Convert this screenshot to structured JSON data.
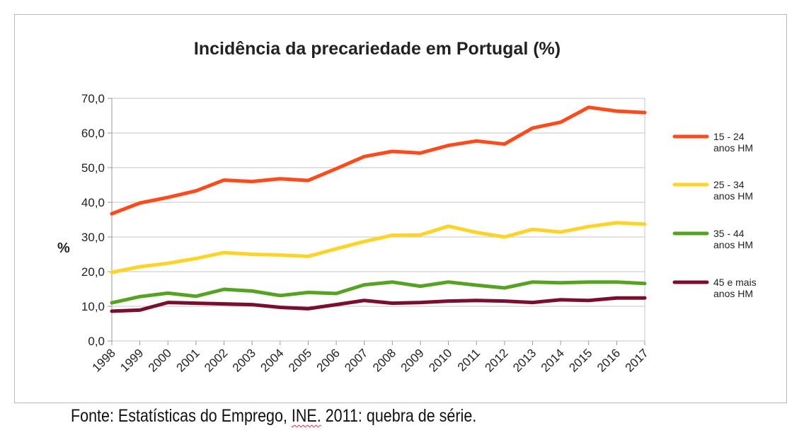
{
  "chart_data": {
    "type": "line",
    "title": "Incidência da precariedade em Portugal (%)",
    "ylabel": "%",
    "xlabel": "",
    "ylim": [
      0,
      70
    ],
    "yticks": [
      "0,0",
      "10,0",
      "20,0",
      "30,0",
      "40,0",
      "50,0",
      "60,0",
      "70,0"
    ],
    "categories": [
      "1998",
      "1999",
      "2000",
      "2001",
      "2002",
      "2003",
      "2004",
      "2005",
      "2006",
      "2007",
      "2008",
      "2009",
      "2010",
      "2011",
      "2012",
      "2013",
      "2014",
      "2015",
      "2016",
      "2017"
    ],
    "series": [
      {
        "name": "15 - 24 anos HM",
        "label_line1": "15 - 24",
        "label_line2": "anos HM",
        "color": "#ff4a1c",
        "values": [
          36.7,
          39.8,
          41.4,
          43.3,
          46.4,
          46.0,
          46.8,
          46.3,
          49.7,
          53.2,
          54.7,
          54.2,
          56.4,
          57.7,
          56.8,
          61.4,
          63.1,
          67.4,
          66.3,
          65.9
        ]
      },
      {
        "name": "25 - 34 anos HM",
        "label_line1": "25 - 34",
        "label_line2": "anos HM",
        "color": "#ffd426",
        "values": [
          19.8,
          21.4,
          22.4,
          23.8,
          25.5,
          25.0,
          24.8,
          24.4,
          26.6,
          28.7,
          30.5,
          30.6,
          33.1,
          31.3,
          30.0,
          32.2,
          31.4,
          33.0,
          34.1,
          33.7
        ]
      },
      {
        "name": "35 - 44 anos HM",
        "label_line1": "35 - 44",
        "label_line2": "anos HM",
        "color": "#56a324",
        "values": [
          11.0,
          12.8,
          13.8,
          12.9,
          14.9,
          14.4,
          13.1,
          14.0,
          13.7,
          16.2,
          17.0,
          15.8,
          17.0,
          16.1,
          15.3,
          17.0,
          16.8,
          17.0,
          17.0,
          16.6
        ]
      },
      {
        "name": "45 e mais anos HM",
        "label_line1": "45 e mais",
        "label_line2": "anos HM",
        "color": "#7b0d2e",
        "values": [
          8.6,
          8.9,
          11.1,
          10.9,
          10.7,
          10.5,
          9.7,
          9.3,
          10.5,
          11.7,
          10.9,
          11.1,
          11.5,
          11.7,
          11.5,
          11.1,
          11.9,
          11.7,
          12.4,
          12.4
        ]
      }
    ],
    "grid": true,
    "legend": "right"
  },
  "footer": {
    "source_prefix": "Fonte: Estatísticas do Emprego, ",
    "source_ine": "INE.",
    "source_suffix": " 2011: quebra de série."
  }
}
